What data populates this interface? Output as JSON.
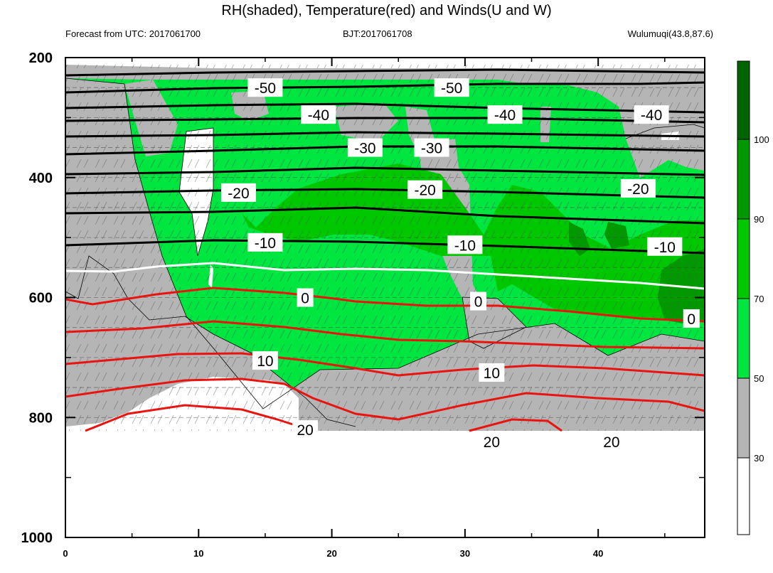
{
  "chart_data": {
    "type": "contour",
    "title": "RH(shaded), Temperature(red) and Winds(U and W)",
    "subtitle_left": "Forecast from UTC: 2017061700",
    "subtitle_center": "BJT:2017061708",
    "subtitle_right": "Wulumuqi(43.8,87.6)",
    "x_ticks": [
      0,
      10,
      20,
      30,
      40
    ],
    "y_ticks": [
      200,
      400,
      600,
      800,
      1000
    ],
    "xlim": [
      0,
      48
    ],
    "ylim": [
      1000,
      200
    ],
    "colorbar": {
      "levels": [
        30,
        50,
        70,
        90,
        100
      ],
      "colors": [
        "#ffffff",
        "#b5b5b5",
        "#00e640",
        "#00c800",
        "#009900",
        "#006400"
      ]
    },
    "temperature_contours": [
      {
        "label": "-50",
        "color": "#000000"
      },
      {
        "label": "-40",
        "color": "#000000"
      },
      {
        "label": "-30",
        "color": "#000000"
      },
      {
        "label": "-20",
        "color": "#000000"
      },
      {
        "label": "-10",
        "color": "#000000"
      },
      {
        "label": "0",
        "color": "#ffffff"
      },
      {
        "label": "10",
        "color": "#e8140f"
      },
      {
        "label": "20",
        "color": "#e8140f"
      }
    ],
    "contour_labels": [
      {
        "text": "-50",
        "x": 15,
        "y": 250
      },
      {
        "text": "-50",
        "x": 29,
        "y": 250
      },
      {
        "text": "-40",
        "x": 19,
        "y": 295
      },
      {
        "text": "-40",
        "x": 33,
        "y": 295
      },
      {
        "text": "-40",
        "x": 44,
        "y": 295
      },
      {
        "text": "-30",
        "x": 22.5,
        "y": 350
      },
      {
        "text": "-30",
        "x": 27.5,
        "y": 350
      },
      {
        "text": "-20",
        "x": 13,
        "y": 425
      },
      {
        "text": "-20",
        "x": 27,
        "y": 420
      },
      {
        "text": "-20",
        "x": 43,
        "y": 418
      },
      {
        "text": "-10",
        "x": 15,
        "y": 508
      },
      {
        "text": "-10",
        "x": 30,
        "y": 512
      },
      {
        "text": "-10",
        "x": 45,
        "y": 515
      },
      {
        "text": "0",
        "x": 18,
        "y": 600
      },
      {
        "text": "0",
        "x": 31,
        "y": 606
      },
      {
        "text": "0",
        "x": 47,
        "y": 635
      },
      {
        "text": "10",
        "x": 15,
        "y": 705
      },
      {
        "text": "10",
        "x": 32,
        "y": 725
      },
      {
        "text": "20",
        "x": 18,
        "y": 820
      },
      {
        "text": "20",
        "x": 32,
        "y": 840
      },
      {
        "text": "20",
        "x": 41,
        "y": 840
      }
    ]
  }
}
